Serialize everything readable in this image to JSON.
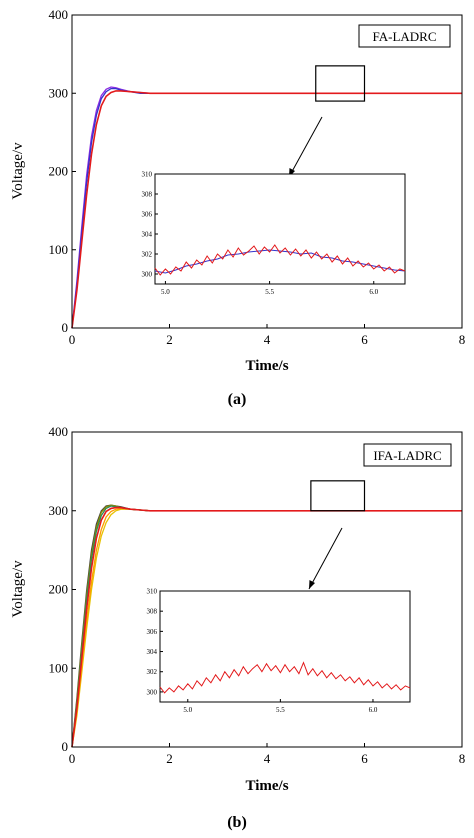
{
  "colors": {
    "red": "#e31a1c",
    "blue": "#3333cc",
    "purple": "#8a2be2",
    "darkgray": "#444444",
    "olive": "#8b8b00",
    "orange": "#ff9900",
    "yellow": "#e6c200",
    "green": "#2e8b57"
  },
  "chart_data": [
    {
      "type": "line",
      "subcaption": "(a)",
      "legend_label": "FA-LADRC",
      "xlabel": "Time/s",
      "ylabel": "Voltage/v",
      "xlim": [
        0,
        8
      ],
      "ylim": [
        0,
        400
      ],
      "xticks": [
        "0",
        "2",
        "4",
        "6",
        "8"
      ],
      "yticks": [
        "0",
        "100",
        "200",
        "300",
        "400"
      ],
      "zoom_box": {
        "x": [
          5.0,
          6.0
        ],
        "y": [
          290,
          335
        ]
      },
      "series": [
        {
          "color_key": "purple",
          "x": [
            0,
            0.1,
            0.2,
            0.3,
            0.4,
            0.5,
            0.6,
            0.7,
            0.8,
            0.9,
            1.0,
            1.2,
            1.4,
            1.6,
            1.8,
            2.0,
            8.0
          ],
          "y": [
            0,
            60,
            130,
            195,
            245,
            278,
            297,
            305,
            308,
            307,
            305,
            302,
            301,
            300,
            300,
            300,
            300
          ]
        },
        {
          "color_key": "blue",
          "x": [
            0,
            0.1,
            0.2,
            0.3,
            0.4,
            0.5,
            0.6,
            0.7,
            0.8,
            0.9,
            1.0,
            1.2,
            1.4,
            1.6,
            1.8,
            2.0,
            8.0
          ],
          "y": [
            0,
            55,
            122,
            186,
            237,
            272,
            293,
            302,
            306,
            306,
            304,
            302,
            300,
            300,
            300,
            300,
            300
          ]
        },
        {
          "color_key": "red",
          "x": [
            0,
            0.1,
            0.2,
            0.3,
            0.4,
            0.5,
            0.6,
            0.7,
            0.8,
            0.9,
            1.0,
            1.2,
            1.4,
            1.6,
            1.8,
            2.0,
            8.0
          ],
          "y": [
            0,
            48,
            110,
            170,
            222,
            260,
            284,
            296,
            301,
            303,
            303,
            302,
            301,
            300,
            300,
            300,
            300
          ]
        }
      ],
      "inset": {
        "xlim": [
          4.95,
          6.15
        ],
        "ylim": [
          299,
          310
        ],
        "xticks": [
          "5.0",
          "5.5",
          "6.0"
        ],
        "yticks": [
          "300",
          "302",
          "304",
          "306",
          "308",
          "310"
        ],
        "series": [
          {
            "color_key": "blue",
            "x": [
              4.95,
              5.0,
              5.05,
              5.1,
              5.15,
              5.2,
              5.25,
              5.3,
              5.35,
              5.4,
              5.45,
              5.5,
              5.55,
              5.6,
              5.65,
              5.7,
              5.75,
              5.8,
              5.85,
              5.9,
              5.95,
              6.0,
              6.05,
              6.1,
              6.15
            ],
            "y": [
              300.3,
              300.1,
              300.4,
              300.8,
              301.0,
              301.3,
              301.5,
              301.9,
              302.0,
              302.2,
              302.3,
              302.4,
              302.3,
              302.2,
              302.0,
              302.1,
              301.7,
              301.6,
              301.3,
              301.2,
              301.0,
              300.8,
              300.6,
              300.4,
              300.3
            ]
          },
          {
            "color_key": "red",
            "x": [
              4.95,
              4.975,
              5.0,
              5.025,
              5.05,
              5.075,
              5.1,
              5.125,
              5.15,
              5.175,
              5.2,
              5.225,
              5.25,
              5.275,
              5.3,
              5.325,
              5.35,
              5.375,
              5.4,
              5.425,
              5.45,
              5.475,
              5.5,
              5.525,
              5.55,
              5.575,
              5.6,
              5.625,
              5.65,
              5.675,
              5.7,
              5.725,
              5.75,
              5.775,
              5.8,
              5.825,
              5.85,
              5.875,
              5.9,
              5.925,
              5.95,
              5.975,
              6.0,
              6.025,
              6.05,
              6.075,
              6.1,
              6.125,
              6.15
            ],
            "y": [
              300.6,
              299.9,
              300.5,
              300.0,
              300.7,
              300.3,
              301.2,
              300.6,
              301.4,
              300.9,
              301.8,
              301.1,
              302.0,
              301.5,
              302.4,
              301.7,
              302.6,
              301.9,
              302.3,
              302.8,
              302.0,
              302.7,
              302.2,
              302.9,
              302.1,
              302.6,
              301.9,
              302.5,
              301.8,
              302.4,
              301.6,
              302.2,
              301.5,
              302.0,
              301.2,
              301.8,
              301.0,
              301.6,
              300.8,
              301.3,
              300.7,
              301.1,
              300.5,
              300.9,
              300.3,
              300.7,
              300.1,
              300.5,
              300.3
            ]
          }
        ]
      }
    },
    {
      "type": "line",
      "subcaption": "(b)",
      "legend_label": "IFA-LADRC",
      "xlabel": "Time/s",
      "ylabel": "Voltage/v",
      "xlim": [
        0,
        8
      ],
      "ylim": [
        0,
        400
      ],
      "xticks": [
        "0",
        "2",
        "4",
        "6",
        "8"
      ],
      "yticks": [
        "0",
        "100",
        "200",
        "300",
        "400"
      ],
      "zoom_box": {
        "x": [
          4.9,
          6.0
        ],
        "y": [
          300,
          338
        ]
      },
      "series": [
        {
          "color_key": "yellow",
          "x": [
            0,
            0.1,
            0.2,
            0.3,
            0.4,
            0.5,
            0.6,
            0.7,
            0.8,
            0.9,
            1.0,
            1.2,
            1.4,
            1.6,
            1.8,
            2.0,
            8.0
          ],
          "y": [
            0,
            40,
            95,
            150,
            200,
            240,
            268,
            285,
            295,
            300,
            302,
            302,
            301,
            300,
            300,
            300,
            300
          ]
        },
        {
          "color_key": "orange",
          "x": [
            0,
            0.1,
            0.2,
            0.3,
            0.4,
            0.5,
            0.6,
            0.7,
            0.8,
            0.9,
            1.0,
            1.2,
            1.4,
            1.6,
            1.8,
            2.0,
            8.0
          ],
          "y": [
            0,
            45,
            103,
            160,
            210,
            250,
            276,
            292,
            299,
            302,
            303,
            302,
            301,
            300,
            300,
            300,
            300
          ]
        },
        {
          "color_key": "darkgray",
          "x": [
            0,
            0.1,
            0.2,
            0.3,
            0.4,
            0.5,
            0.6,
            0.7,
            0.8,
            0.9,
            1.0,
            1.2,
            1.4,
            1.6,
            1.8,
            2.0,
            8.0
          ],
          "y": [
            0,
            62,
            133,
            198,
            250,
            283,
            300,
            306,
            307,
            306,
            305,
            302,
            301,
            300,
            300,
            300,
            300
          ]
        },
        {
          "color_key": "olive",
          "x": [
            0,
            0.1,
            0.2,
            0.3,
            0.4,
            0.5,
            0.6,
            0.7,
            0.8,
            0.9,
            1.0,
            1.2,
            1.4,
            1.6,
            1.8,
            2.0,
            8.0
          ],
          "y": [
            0,
            58,
            128,
            192,
            244,
            279,
            298,
            305,
            307,
            306,
            304,
            302,
            301,
            300,
            300,
            300,
            300
          ]
        },
        {
          "color_key": "green",
          "x": [
            0,
            0.1,
            0.2,
            0.3,
            0.4,
            0.5,
            0.6,
            0.7,
            0.8,
            0.9,
            1.0,
            1.2,
            1.4,
            1.6,
            1.8,
            2.0,
            8.0
          ],
          "y": [
            0,
            55,
            122,
            186,
            238,
            274,
            294,
            303,
            306,
            305,
            304,
            302,
            301,
            300,
            300,
            300,
            300
          ]
        },
        {
          "color_key": "red",
          "x": [
            0,
            0.1,
            0.2,
            0.3,
            0.4,
            0.5,
            0.6,
            0.7,
            0.8,
            0.9,
            1.0,
            1.2,
            1.4,
            1.6,
            1.8,
            2.0,
            8.0
          ],
          "y": [
            0,
            50,
            113,
            175,
            227,
            265,
            288,
            299,
            303,
            304,
            304,
            302,
            301,
            300,
            300,
            300,
            300
          ]
        }
      ],
      "inset": {
        "xlim": [
          4.85,
          6.2
        ],
        "ylim": [
          299,
          310
        ],
        "xticks": [
          "5.0",
          "5.5",
          "6.0"
        ],
        "yticks": [
          "300",
          "302",
          "304",
          "306",
          "308",
          "310"
        ],
        "series": [
          {
            "color_key": "red",
            "x": [
              4.85,
              4.875,
              4.9,
              4.925,
              4.95,
              4.975,
              5.0,
              5.025,
              5.05,
              5.075,
              5.1,
              5.125,
              5.15,
              5.175,
              5.2,
              5.225,
              5.25,
              5.275,
              5.3,
              5.325,
              5.35,
              5.375,
              5.4,
              5.425,
              5.45,
              5.475,
              5.5,
              5.525,
              5.55,
              5.575,
              5.6,
              5.625,
              5.65,
              5.675,
              5.7,
              5.725,
              5.75,
              5.775,
              5.8,
              5.825,
              5.85,
              5.875,
              5.9,
              5.925,
              5.95,
              5.975,
              6.0,
              6.025,
              6.05,
              6.075,
              6.1,
              6.125,
              6.15,
              6.175,
              6.2
            ],
            "y": [
              300.5,
              299.9,
              300.4,
              300.0,
              300.6,
              300.2,
              300.8,
              300.3,
              301.1,
              300.6,
              301.4,
              300.9,
              301.7,
              301.1,
              302.0,
              301.4,
              302.2,
              301.6,
              302.5,
              301.8,
              302.3,
              302.7,
              302.0,
              302.8,
              302.1,
              302.6,
              301.9,
              302.7,
              302.0,
              302.5,
              301.8,
              302.9,
              301.7,
              302.3,
              301.6,
              302.1,
              301.4,
              301.9,
              301.3,
              301.7,
              301.1,
              301.5,
              300.9,
              301.4,
              300.7,
              301.2,
              300.6,
              301.0,
              300.4,
              300.8,
              300.3,
              300.7,
              300.2,
              300.6,
              300.4
            ]
          }
        ]
      }
    }
  ]
}
